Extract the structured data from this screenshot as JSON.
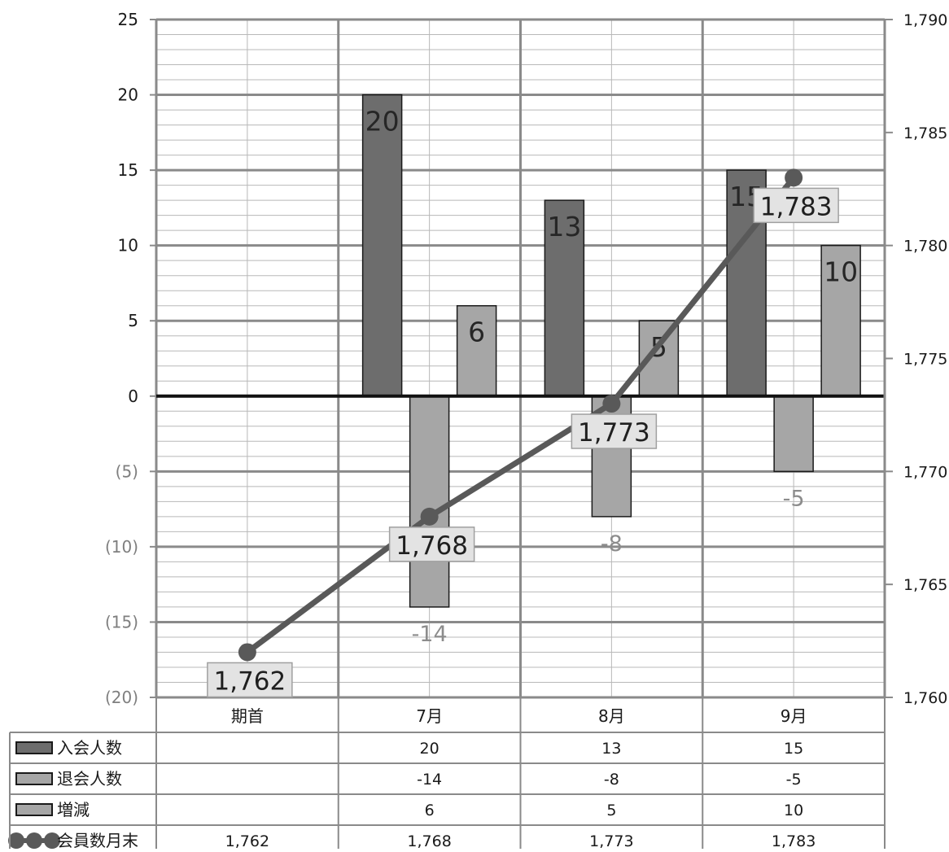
{
  "chart_data": {
    "type": "bar",
    "categories": [
      "期首",
      "7月",
      "8月",
      "9月"
    ],
    "series": [
      {
        "name": "入会人数",
        "kind": "bar",
        "axis": "left",
        "values": [
          null,
          20,
          13,
          15
        ],
        "color": "#6d6d6d"
      },
      {
        "name": "退会人数",
        "kind": "bar",
        "axis": "left",
        "values": [
          null,
          -14,
          -8,
          -5
        ],
        "color": "#a6a6a6"
      },
      {
        "name": "増減",
        "kind": "bar",
        "axis": "left",
        "values": [
          null,
          6,
          5,
          10
        ],
        "color": "#a6a6a6"
      },
      {
        "name": "会員数月末",
        "kind": "line",
        "axis": "right",
        "values": [
          1762,
          1768,
          1773,
          1783
        ],
        "color": "#595959"
      }
    ],
    "bar_labels": {
      "入会人数": [
        "",
        "20",
        "13",
        "15"
      ],
      "退会人数": [
        "",
        "-14",
        "-8",
        "-5"
      ],
      "増減": [
        "",
        "6",
        "5",
        "10"
      ]
    },
    "line_labels": [
      "1,762",
      "1,768",
      "1,773",
      "1,783"
    ],
    "left_axis": {
      "ylim": [
        -20,
        25
      ],
      "ticks": [
        25,
        20,
        15,
        10,
        5,
        0,
        -5,
        -10,
        -15,
        -20
      ],
      "tick_labels": [
        "25",
        "20",
        "15",
        "10",
        "5",
        "0",
        "(5)",
        "(10)",
        "(15)",
        "(20)"
      ]
    },
    "right_axis": {
      "ylim": [
        1760,
        1790
      ],
      "ticks": [
        1790,
        1785,
        1780,
        1775,
        1770,
        1765,
        1760
      ],
      "tick_labels": [
        "1,790",
        "1,785",
        "1,780",
        "1,775",
        "1,770",
        "1,765",
        "1,760"
      ]
    },
    "data_table": {
      "header": [
        "期首",
        "7月",
        "8月",
        "9月"
      ],
      "rows": [
        {
          "label": "入会人数",
          "values": [
            "",
            "20",
            "13",
            "15"
          ]
        },
        {
          "label": "退会人数",
          "values": [
            "",
            "-14",
            "-8",
            "-5"
          ]
        },
        {
          "label": "増減",
          "values": [
            "",
            "6",
            "5",
            "10"
          ]
        },
        {
          "label": "会員数月末",
          "values": [
            "1,762",
            "1,768",
            "1,773",
            "1,783"
          ]
        }
      ]
    },
    "grid": true,
    "legend": "data-table"
  }
}
